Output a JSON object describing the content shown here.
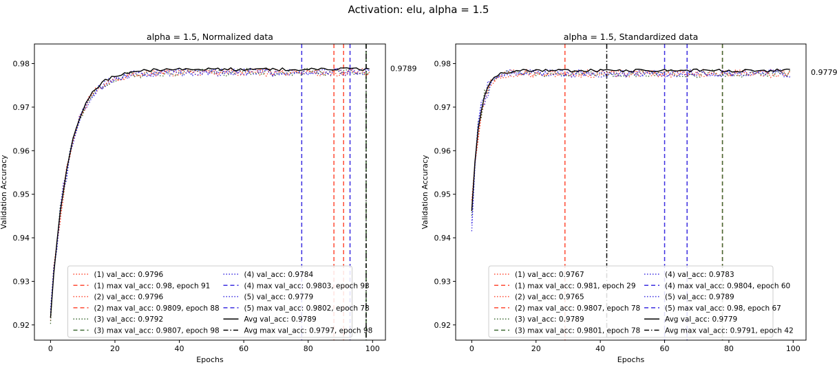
{
  "figure": {
    "suptitle": "Activation: elu, alpha = 1.5"
  },
  "chart_data": [
    {
      "type": "line",
      "title": "alpha = 1.5, Normalized data",
      "xlabel": "Epochs",
      "ylabel": "Validation Accuracy",
      "xlim": [
        -5,
        104
      ],
      "ylim": [
        0.9165,
        0.9845
      ],
      "xticks": [
        0,
        20,
        40,
        60,
        80,
        100
      ],
      "yticks": [
        0.92,
        0.93,
        0.94,
        0.95,
        0.96,
        0.97,
        0.98
      ],
      "ytick_labels": [
        "0.92",
        "0.93",
        "0.94",
        "0.95",
        "0.96",
        "0.97",
        "0.98"
      ],
      "side_label": "0.9789",
      "side_value": 0.9789,
      "curve": {
        "start": 0.922,
        "plateau": 0.9787,
        "rate": 0.18,
        "drift": 0.0
      },
      "series": [
        {
          "name": "(1) val_acc: 0.9796",
          "color": "#ff4a33",
          "style": "dotted"
        },
        {
          "name": "(2) val_acc: 0.9796",
          "color": "#ff4a33",
          "style": "dotted"
        },
        {
          "name": "(3) val_acc: 0.9792",
          "color": "#3e6b34",
          "style": "dotted"
        },
        {
          "name": "(4) val_acc: 0.9784",
          "color": "#3a2ce0",
          "style": "dotted"
        },
        {
          "name": "(5) val_acc: 0.9779",
          "color": "#3a2ce0",
          "style": "dotted"
        },
        {
          "name": "Avg val_acc: 0.9789",
          "color": "#000000",
          "style": "solid"
        }
      ],
      "vlines": [
        {
          "name": "(1) max val_acc: 0.98, epoch 91",
          "x": 91,
          "color": "#ff4a33",
          "style": "dashed"
        },
        {
          "name": "(2) max val_acc: 0.9809, epoch 88",
          "x": 88,
          "color": "#ff4a33",
          "style": "dashed"
        },
        {
          "name": "(3) max val_acc: 0.9807, epoch 98",
          "x": 98,
          "color": "#3e6b34",
          "style": "dashed"
        },
        {
          "name": "(4) max val_acc: 0.9803, epoch 93",
          "x": 93,
          "color": "#3a2ce0",
          "style": "dashed"
        },
        {
          "name": "(5) max val_acc: 0.9802, epoch 78",
          "x": 78,
          "color": "#3a2ce0",
          "style": "dashed"
        },
        {
          "name": "Avg max val_acc: 0.9797, epoch 98",
          "x": 98,
          "color": "#000000",
          "style": "dashdot"
        }
      ],
      "legend": {
        "position": "lower center",
        "col1": [
          "(1) val_acc: 0.9796",
          "(1) max val_acc: 0.98, epoch 91",
          "(2) val_acc: 0.9796",
          "(2) max val_acc: 0.9809, epoch 88",
          "(3) val_acc: 0.9792",
          "(3) max val_acc: 0.9807, epoch 98"
        ],
        "col2": [
          "(4) val_acc: 0.9784",
          "(4) max val_acc: 0.9803, epoch 93",
          "(5) val_acc: 0.9779",
          "(5) max val_acc: 0.9802, epoch 78",
          "Avg val_acc: 0.9789",
          "Avg max val_acc: 0.9797, epoch 98"
        ],
        "col1_styles": [
          [
            "#ff4a33",
            "dotted"
          ],
          [
            "#ff4a33",
            "dashed"
          ],
          [
            "#ff4a33",
            "dotted"
          ],
          [
            "#ff4a33",
            "dashed"
          ],
          [
            "#3e6b34",
            "dotted"
          ],
          [
            "#3e6b34",
            "dashed"
          ]
        ],
        "col2_styles": [
          [
            "#3a2ce0",
            "dotted"
          ],
          [
            "#3a2ce0",
            "dashed"
          ],
          [
            "#3a2ce0",
            "dotted"
          ],
          [
            "#3a2ce0",
            "dashed"
          ],
          [
            "#000000",
            "solid"
          ],
          [
            "#000000",
            "dashdot"
          ]
        ]
      }
    },
    {
      "type": "line",
      "title": "alpha = 1.5, Standardized data",
      "xlabel": "Epochs",
      "ylabel": "Validation Accuracy",
      "xlim": [
        -5,
        104
      ],
      "ylim": [
        0.9165,
        0.9845
      ],
      "xticks": [
        0,
        20,
        40,
        60,
        80,
        100
      ],
      "yticks": [
        0.92,
        0.93,
        0.94,
        0.95,
        0.96,
        0.97,
        0.98
      ],
      "ytick_labels": [
        "0.92",
        "0.93",
        "0.94",
        "0.95",
        "0.96",
        "0.97",
        "0.98"
      ],
      "side_label": "0.9779",
      "side_value": 0.978,
      "curve": {
        "start": 0.9465,
        "plateau": 0.9784,
        "rate": 0.42,
        "drift": 0.0
      },
      "series": [
        {
          "name": "(1) val_acc: 0.9767",
          "color": "#ff4a33",
          "style": "dotted"
        },
        {
          "name": "(2) val_acc: 0.9765",
          "color": "#ff4a33",
          "style": "dotted"
        },
        {
          "name": "(3) val_acc: 0.9789",
          "color": "#3e6b34",
          "style": "dotted"
        },
        {
          "name": "(4) val_acc: 0.9783",
          "color": "#3a2ce0",
          "style": "dotted"
        },
        {
          "name": "(5) val_acc: 0.9789",
          "color": "#3a2ce0",
          "style": "dotted"
        },
        {
          "name": "Avg val_acc: 0.9779",
          "color": "#000000",
          "style": "solid"
        }
      ],
      "vlines": [
        {
          "name": "(1) max val_acc: 0.981, epoch 29",
          "x": 29,
          "color": "#ff4a33",
          "style": "dashed"
        },
        {
          "name": "(2) max val_acc: 0.9807, epoch 78",
          "x": 78,
          "color": "#ff4a33",
          "style": "dashed"
        },
        {
          "name": "(3) max val_acc: 0.9801, epoch 78",
          "x": 78,
          "color": "#3e6b34",
          "style": "dashed"
        },
        {
          "name": "(4) max val_acc: 0.9804, epoch 60",
          "x": 60,
          "color": "#3a2ce0",
          "style": "dashed"
        },
        {
          "name": "(5) max val_acc: 0.98, epoch 67",
          "x": 67,
          "color": "#3a2ce0",
          "style": "dashed"
        },
        {
          "name": "Avg max val_acc: 0.9791, epoch 42",
          "x": 42,
          "color": "#000000",
          "style": "dashdot"
        }
      ],
      "legend": {
        "position": "lower center",
        "col1": [
          "(1) val_acc: 0.9767",
          "(1) max val_acc: 0.981, epoch 29",
          "(2) val_acc: 0.9765",
          "(2) max val_acc: 0.9807, epoch 78",
          "(3) val_acc: 0.9789",
          "(3) max val_acc: 0.9801, epoch 78"
        ],
        "col2": [
          "(4) val_acc: 0.9783",
          "(4) max val_acc: 0.9804, epoch 60",
          "(5) val_acc: 0.9789",
          "(5) max val_acc: 0.98, epoch 67",
          "Avg val_acc: 0.9779",
          "Avg max val_acc: 0.9791, epoch 42"
        ],
        "col1_styles": [
          [
            "#ff4a33",
            "dotted"
          ],
          [
            "#ff4a33",
            "dashed"
          ],
          [
            "#ff4a33",
            "dotted"
          ],
          [
            "#ff4a33",
            "dashed"
          ],
          [
            "#3e6b34",
            "dotted"
          ],
          [
            "#3e6b34",
            "dashed"
          ]
        ],
        "col2_styles": [
          [
            "#3a2ce0",
            "dotted"
          ],
          [
            "#3a2ce0",
            "dashed"
          ],
          [
            "#3a2ce0",
            "dotted"
          ],
          [
            "#3a2ce0",
            "dashed"
          ],
          [
            "#000000",
            "solid"
          ],
          [
            "#000000",
            "dashdot"
          ]
        ]
      }
    }
  ]
}
